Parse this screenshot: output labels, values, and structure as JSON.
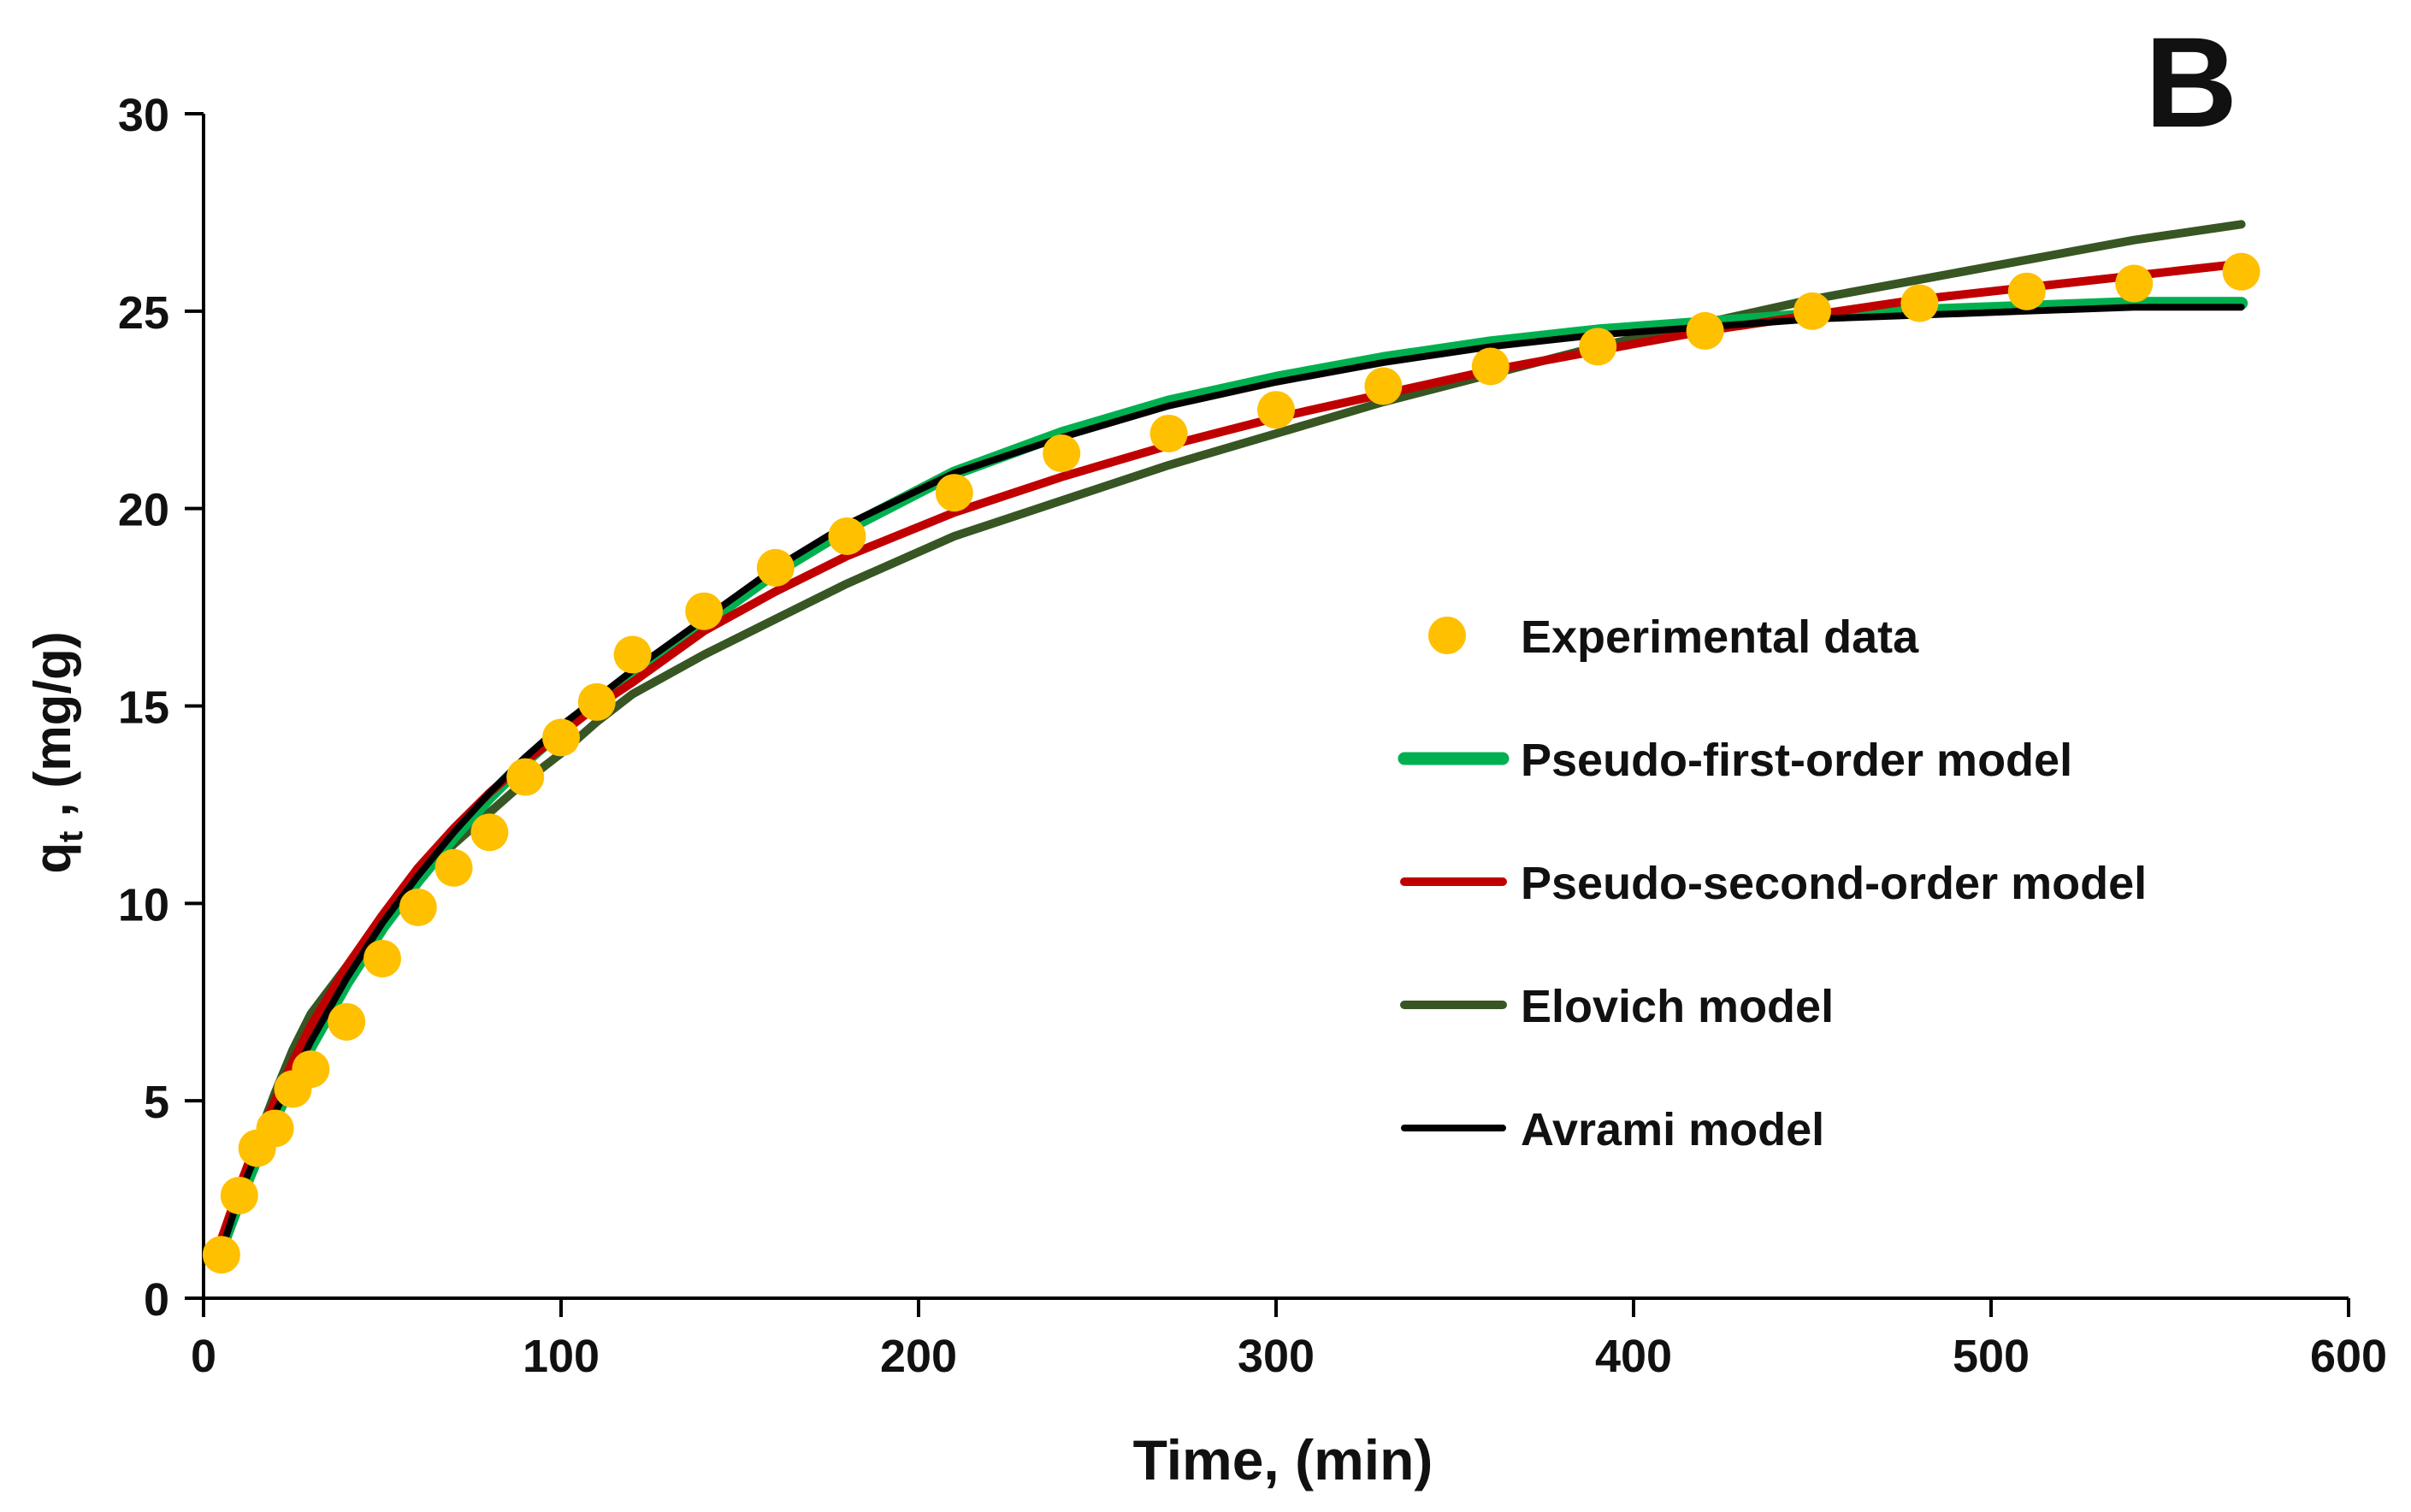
{
  "chart_data": {
    "type": "line",
    "panel_label": "B",
    "title": "",
    "xlabel": "Time, (min)",
    "ylabel_main": "q",
    "ylabel_sub": "t",
    "ylabel_rest": " , (mg/g)",
    "xlim": [
      0,
      600
    ],
    "ylim": [
      0,
      30
    ],
    "xticks": [
      0,
      100,
      200,
      300,
      400,
      500,
      600
    ],
    "yticks": [
      0,
      5,
      10,
      15,
      20,
      25,
      30
    ],
    "grid": false,
    "legend_position": "center-right",
    "x": [
      5,
      10,
      15,
      20,
      25,
      30,
      40,
      50,
      60,
      70,
      80,
      90,
      100,
      110,
      120,
      140,
      160,
      180,
      210,
      240,
      270,
      300,
      330,
      360,
      390,
      420,
      450,
      480,
      510,
      540,
      570
    ],
    "series": [
      {
        "name": "Experimental data",
        "kind": "scatter",
        "color": "#FFC000",
        "values": [
          1.1,
          2.6,
          3.8,
          4.3,
          5.3,
          5.8,
          7.0,
          8.6,
          9.9,
          10.9,
          11.8,
          13.2,
          14.2,
          15.1,
          16.3,
          17.4,
          18.5,
          19.3,
          20.4,
          21.4,
          21.9,
          22.5,
          23.1,
          23.6,
          24.1,
          24.5,
          25.0,
          25.2,
          25.5,
          25.7,
          26.0
        ]
      },
      {
        "name": "Pseudo-first-order model",
        "kind": "line",
        "color": "#00B050",
        "values": [
          1.3,
          2.5,
          3.6,
          4.6,
          5.5,
          6.4,
          8.0,
          9.4,
          10.6,
          11.7,
          12.7,
          13.6,
          14.4,
          15.1,
          15.8,
          17.1,
          18.4,
          19.5,
          20.9,
          21.9,
          22.7,
          23.3,
          23.8,
          24.2,
          24.5,
          24.7,
          24.9,
          25.0,
          25.1,
          25.2,
          25.2
        ]
      },
      {
        "name": "Pseudo-second-order model",
        "kind": "line",
        "color": "#C00000",
        "values": [
          1.5,
          2.8,
          4.0,
          5.0,
          6.0,
          6.9,
          8.4,
          9.7,
          10.9,
          11.9,
          12.8,
          13.6,
          14.3,
          15.0,
          15.6,
          16.9,
          17.9,
          18.8,
          19.9,
          20.8,
          21.6,
          22.3,
          22.9,
          23.5,
          24.0,
          24.5,
          24.9,
          25.3,
          25.6,
          25.9,
          26.2
        ]
      },
      {
        "name": "Elovich model",
        "kind": "line",
        "color": "#375623",
        "values": [
          1.0,
          2.6,
          4.0,
          5.2,
          6.3,
          7.2,
          8.4,
          9.6,
          10.6,
          11.5,
          12.3,
          13.1,
          13.8,
          14.6,
          15.3,
          16.3,
          17.2,
          18.1,
          19.3,
          20.2,
          21.1,
          21.9,
          22.7,
          23.4,
          24.1,
          24.7,
          25.3,
          25.8,
          26.3,
          26.8,
          27.2
        ]
      },
      {
        "name": "Avrami model",
        "kind": "line",
        "color": "#000000",
        "values": [
          1.2,
          2.6,
          3.7,
          4.7,
          5.6,
          6.5,
          8.1,
          9.5,
          10.7,
          11.8,
          12.8,
          13.7,
          14.5,
          15.2,
          15.9,
          17.2,
          18.5,
          19.6,
          20.9,
          21.8,
          22.6,
          23.2,
          23.7,
          24.1,
          24.4,
          24.6,
          24.8,
          24.9,
          25.0,
          25.1,
          25.1
        ]
      }
    ]
  }
}
